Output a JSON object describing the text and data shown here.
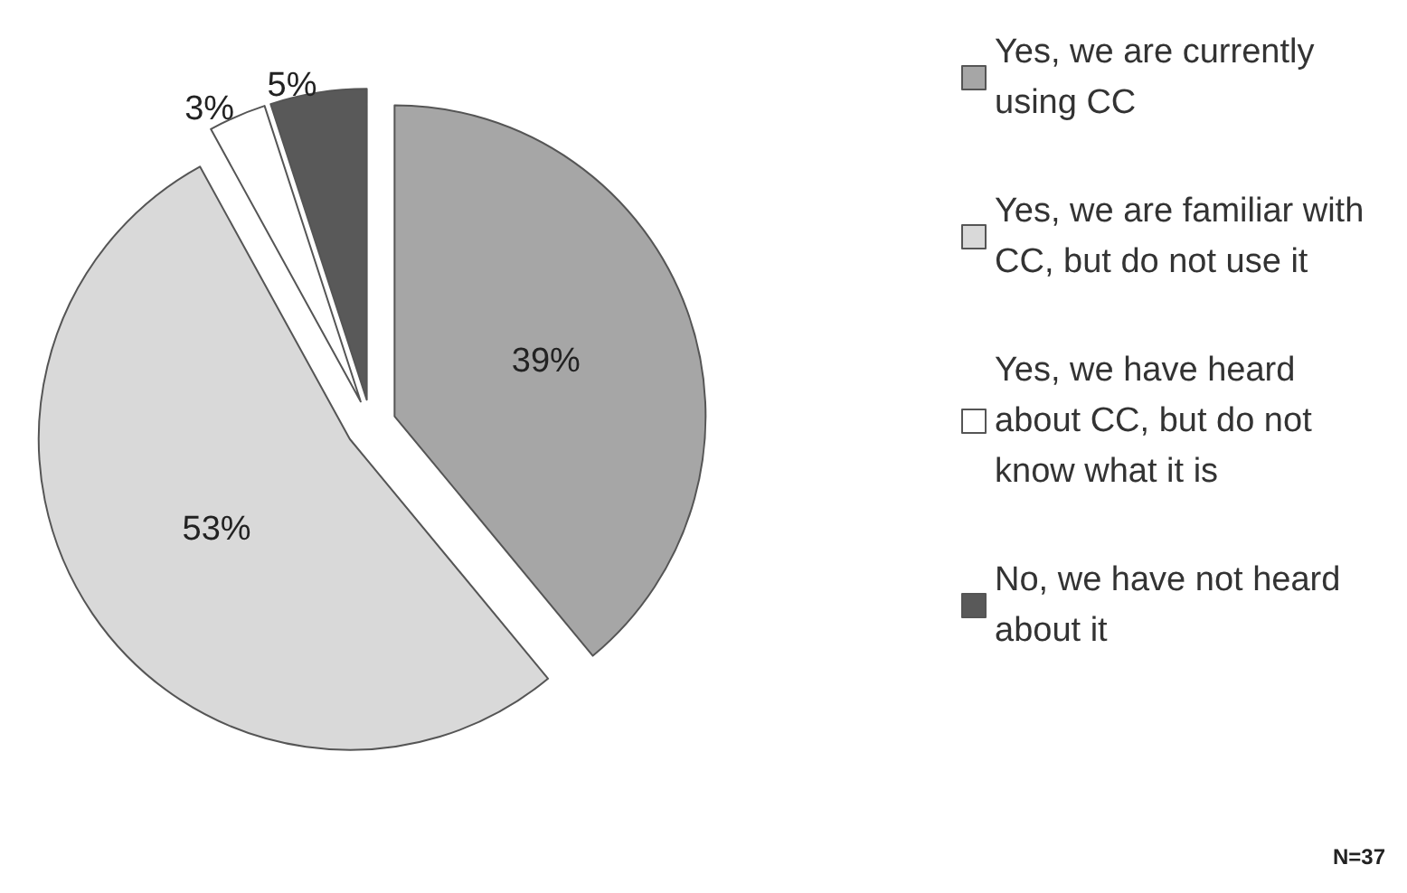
{
  "chart_data": {
    "type": "pie",
    "categories": [
      "Yes, we are currently using CC",
      "Yes, we are familiar with CC, but do not use it",
      "Yes, we have heard about CC, but do not know what it is",
      "No, we have not heard about it"
    ],
    "values": [
      39,
      53,
      3,
      5
    ],
    "colors": [
      "#a6a6a6",
      "#d9d9d9",
      "#ffffff",
      "#595959"
    ],
    "value_labels": [
      "39%",
      "53%",
      "3%",
      "5%"
    ],
    "legend": "right",
    "annotations": [
      "N=37"
    ]
  }
}
